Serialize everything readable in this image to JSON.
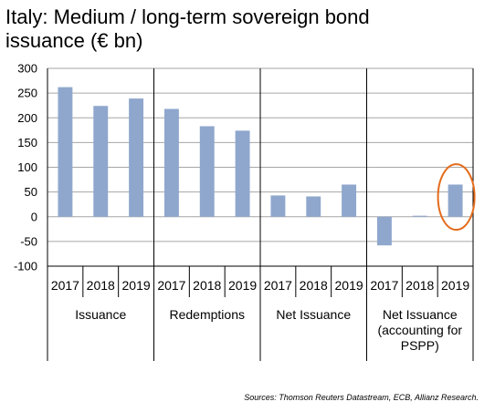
{
  "chart_data": {
    "type": "bar",
    "title_lines": [
      "Italy: Medium / long-term sovereign bond",
      "issuance (€ bn)"
    ],
    "source": "Sources: Thomson Reuters Datastream, ECB, Allianz Research.",
    "ylim": [
      -100,
      300
    ],
    "y_ticks": [
      -100,
      -50,
      0,
      50,
      100,
      150,
      200,
      250,
      300
    ],
    "grid": true,
    "bar_color": "#8fa7cd",
    "highlight_color": "#e46c1b",
    "highlight": {
      "group": 4,
      "category": 3
    },
    "groups": [
      {
        "label_lines": [
          "Issuance"
        ],
        "categories": [
          "2017",
          "2018",
          "2019"
        ],
        "values": [
          262,
          224,
          239
        ]
      },
      {
        "label_lines": [
          "Redemptions"
        ],
        "categories": [
          "2017",
          "2018",
          "2019"
        ],
        "values": [
          218,
          183,
          174
        ]
      },
      {
        "label_lines": [
          "Net Issuance"
        ],
        "categories": [
          "2017",
          "2018",
          "2019"
        ],
        "values": [
          43,
          41,
          65
        ]
      },
      {
        "label_lines": [
          "Net  Issuance",
          "(accounting for",
          "PSPP)"
        ],
        "categories": [
          "2017",
          "2018",
          "2019"
        ],
        "values": [
          -58,
          2,
          65
        ]
      }
    ]
  }
}
